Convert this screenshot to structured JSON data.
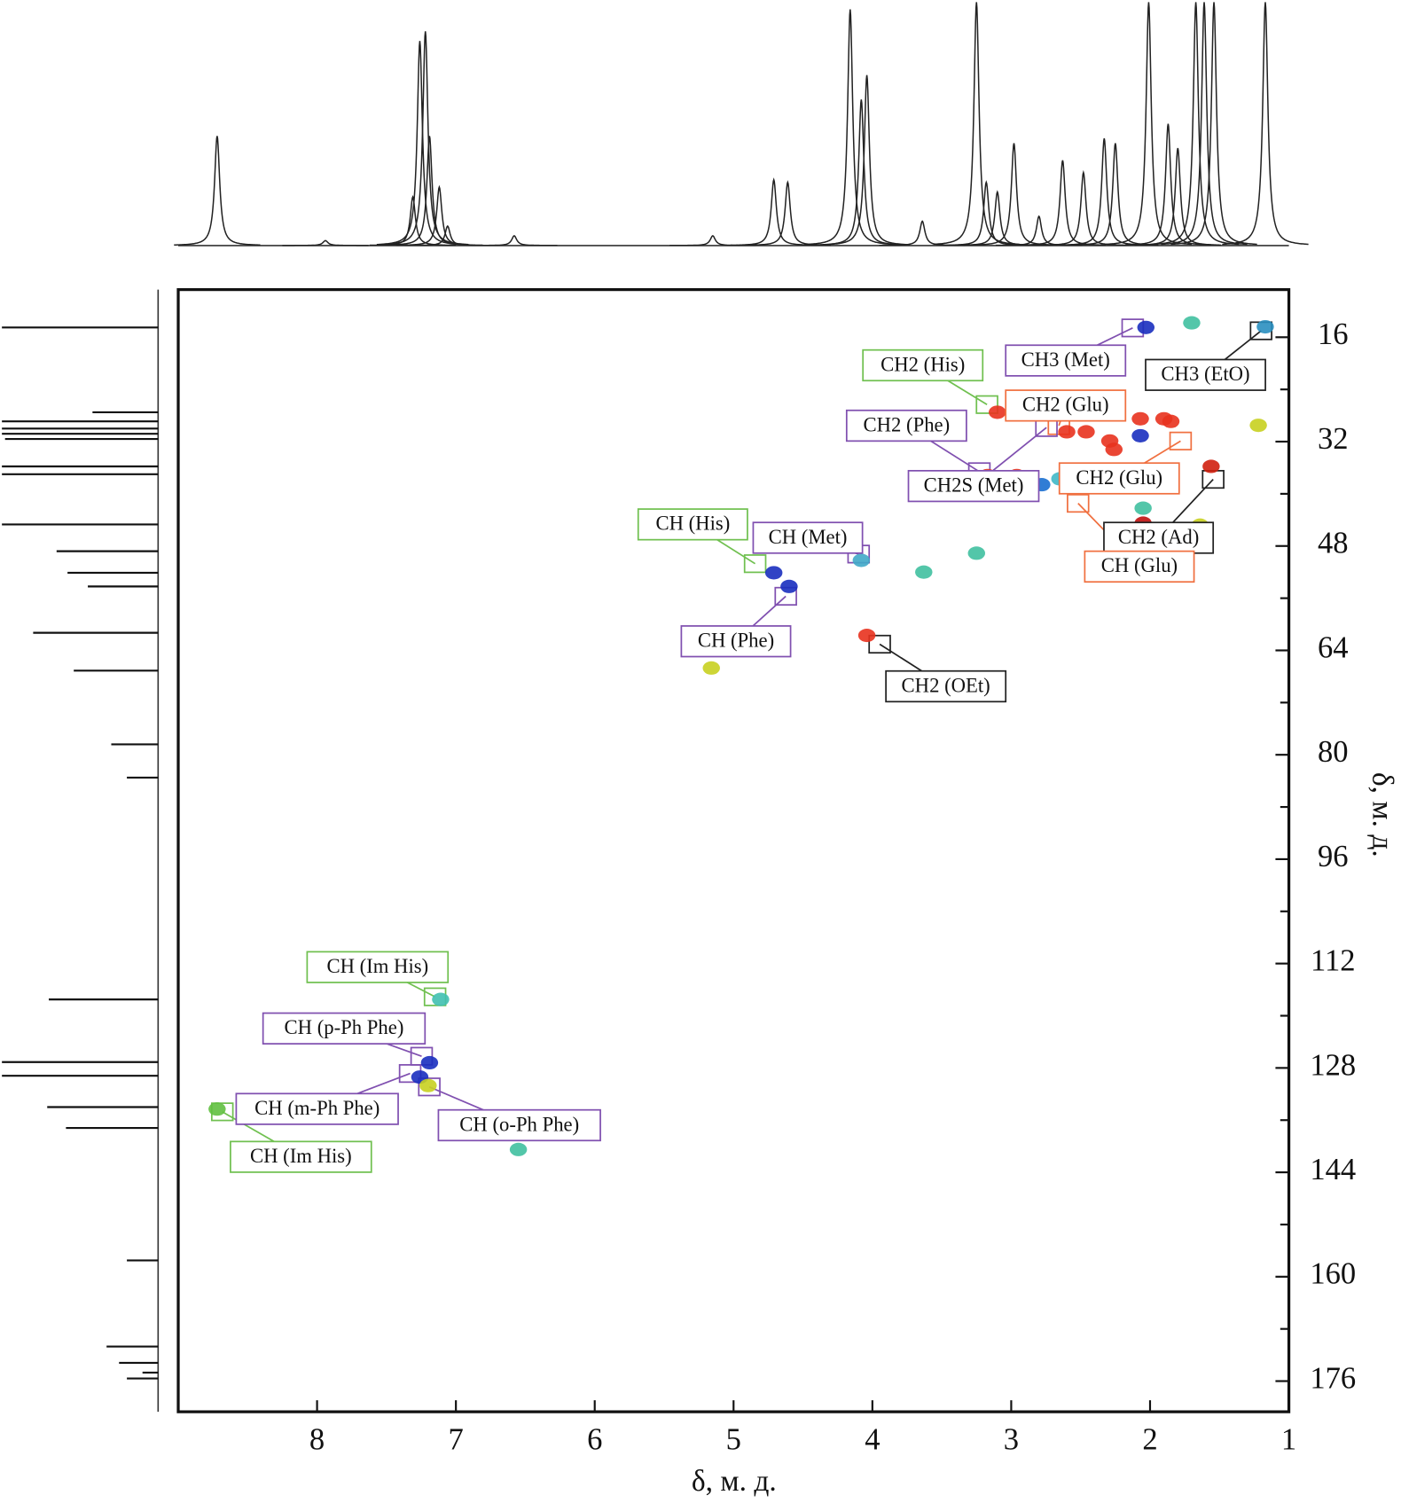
{
  "chart_data": {
    "type": "scatter",
    "xlabel": "δ, м. д.",
    "ylabel": "δ, м. д.",
    "xlim": [
      9,
      1
    ],
    "ylim": [
      8.7,
      180.7
    ],
    "xticks": [
      8,
      7,
      6,
      5,
      4,
      3,
      2,
      1
    ],
    "yticks": [
      16,
      32,
      48,
      64,
      80,
      96,
      112,
      128,
      144,
      160,
      176
    ],
    "yminorticks": [
      24,
      40,
      56,
      72,
      88,
      104,
      120,
      136,
      152,
      168
    ],
    "x": [
      2.03,
      1.17,
      1.7,
      3.1,
      2.94,
      2.6,
      2.46,
      2.29,
      2.26,
      2.07,
      2.07,
      1.9,
      1.85,
      1.22,
      1.56,
      3.17,
      2.96,
      2.78,
      2.65,
      2.05,
      2.05,
      1.64,
      3.25,
      4.71,
      4.6,
      4.08,
      3.63,
      4.04,
      5.16,
      7.11,
      7.19,
      7.26,
      7.2,
      8.72,
      6.55
    ],
    "values": [
      14.5,
      14.4,
      13.8,
      27.5,
      27.5,
      30.5,
      30.5,
      31.9,
      33.2,
      31.1,
      28.5,
      28.5,
      28.9,
      29.5,
      35.8,
      37.2,
      37.2,
      38.6,
      37.7,
      44.5,
      42.2,
      44.8,
      49.1,
      52.1,
      54.2,
      50.2,
      52.0,
      61.7,
      66.7,
      117.5,
      127.2,
      129.4,
      130.7,
      134.3,
      140.5
    ],
    "point_colors": [
      "#1a2fbf",
      "#2a8fc0",
      "#40c0a0",
      "#e8321e",
      "#e8321e",
      "#e8321e",
      "#e8321e",
      "#e8321e",
      "#e8321e",
      "#1a2fbf",
      "#e8321e",
      "#e8321e",
      "#e8321e",
      "#c8d020",
      "#d0200e",
      "#e8321e",
      "#e8321e",
      "#1a6fd0",
      "#40b8c8",
      "#c0100e",
      "#40c0a0",
      "#c8d020",
      "#40c0a0",
      "#1a2fbf",
      "#1a2fbf",
      "#40a8c8",
      "#40c0a0",
      "#e8321e",
      "#c8d020",
      "#40c0b0",
      "#1a2fbf",
      "#1a2fbf",
      "#c8d020",
      "#60c040",
      "#40c0a0"
    ],
    "annotations": [
      {
        "text": "CH3 (Met)",
        "color": "#8050b0"
      },
      {
        "text": "CH3 (EtO)",
        "color": "#222222"
      },
      {
        "text": "CH2 (His)",
        "color": "#70c050"
      },
      {
        "text": "CH2 (Glu)",
        "color": "#f07040"
      },
      {
        "text": "CH2 (Phe)",
        "color": "#8050b0"
      },
      {
        "text": "CH2S (Met)",
        "color": "#8050b0"
      },
      {
        "text": "CH2 (Glu)",
        "color": "#f07040"
      },
      {
        "text": "CH2 (Ad)",
        "color": "#222222"
      },
      {
        "text": "CH (Glu)",
        "color": "#f07040"
      },
      {
        "text": "CH (His)",
        "color": "#70c050"
      },
      {
        "text": "CH (Met)",
        "color": "#8050b0"
      },
      {
        "text": "CH (Phe)",
        "color": "#8050b0"
      },
      {
        "text": "CH2 (OEt)",
        "color": "#222222"
      },
      {
        "text": "CH (Im His)",
        "color": "#70c050"
      },
      {
        "text": "CH (p-Ph Phe)",
        "color": "#8050b0"
      },
      {
        "text": "CH (m-Ph Phe)",
        "color": "#8050b0"
      },
      {
        "text": "CH (o-Ph Phe)",
        "color": "#8050b0"
      },
      {
        "text": "CH (Im His)",
        "color": "#70c050"
      }
    ],
    "top_spectrum": {
      "x": [
        8.72,
        7.94,
        7.31,
        7.26,
        7.22,
        7.19,
        7.12,
        7.06,
        6.58,
        5.15,
        4.71,
        4.61,
        4.16,
        4.08,
        4.04,
        3.64,
        3.25,
        3.18,
        3.1,
        2.98,
        2.8,
        2.63,
        2.48,
        2.33,
        2.25,
        2.01,
        1.87,
        1.8,
        1.67,
        1.61,
        1.54,
        1.17
      ],
      "values": [
        45,
        2,
        20,
        84,
        88,
        45,
        24,
        8,
        4,
        4,
        27,
        26,
        97,
        60,
        70,
        10,
        100,
        26,
        22,
        42,
        12,
        35,
        30,
        44,
        42,
        100,
        50,
        40,
        100,
        100,
        100,
        100
      ]
    },
    "side_spectrum": {
      "y": [
        14.5,
        27.5,
        28.9,
        30.0,
        30.8,
        31.6,
        35.8,
        37.0,
        44.7,
        48.8,
        52.1,
        54.2,
        61.3,
        67.1,
        78.4,
        83.5,
        117.5,
        127.1,
        129.2,
        134.0,
        137.2,
        157.5,
        170.7,
        173.2,
        174.7,
        175.6
      ],
      "values": [
        100,
        42,
        100,
        100,
        100,
        98,
        100,
        100,
        100,
        65,
        58,
        45,
        80,
        54,
        30,
        20,
        70,
        100,
        100,
        71,
        59,
        20,
        33,
        25,
        10,
        20
      ]
    }
  }
}
